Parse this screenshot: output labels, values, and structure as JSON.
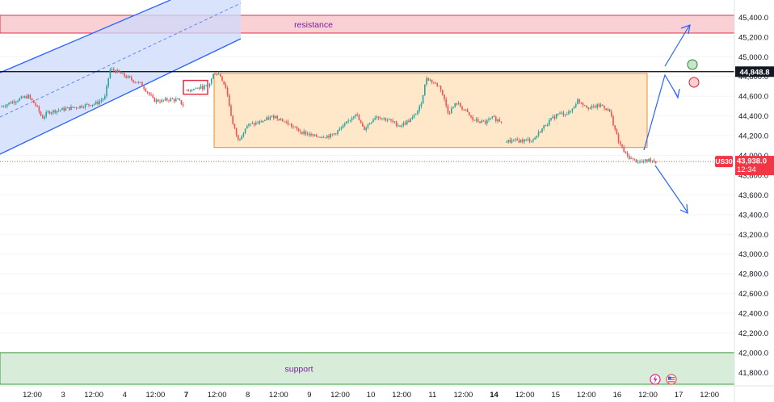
{
  "chart_data": {
    "type": "candlestick",
    "symbol": "US30",
    "ylim": [
      41650,
      45550
    ],
    "y_ticks": [
      41800,
      42000,
      42200,
      42400,
      42600,
      42800,
      43000,
      43200,
      43400,
      43600,
      43800,
      44000,
      44200,
      44400,
      44600,
      44800,
      45000,
      45200,
      45400
    ],
    "y_tick_labels": [
      "41,800.0",
      "42,000.0",
      "42,200.0",
      "42,400.0",
      "42,600.0",
      "42,800.0",
      "43,000.0",
      "43,200.0",
      "43,400.0",
      "43,600.0",
      "43,800.0",
      "44,000.0",
      "44,200.0",
      "44,400.0",
      "44,600.0",
      "44,800.0",
      "45,000.0",
      "45,200.0",
      "45,400.0"
    ],
    "x_ticks": [
      {
        "label": "12:00",
        "bold": false
      },
      {
        "label": "3",
        "bold": false
      },
      {
        "label": "12:00",
        "bold": false
      },
      {
        "label": "4",
        "bold": false
      },
      {
        "label": "12:00",
        "bold": false
      },
      {
        "label": "7",
        "bold": true
      },
      {
        "label": "12:00",
        "bold": false
      },
      {
        "label": "8",
        "bold": false
      },
      {
        "label": "12:00",
        "bold": false
      },
      {
        "label": "9",
        "bold": false
      },
      {
        "label": "12:00",
        "bold": false
      },
      {
        "label": "10",
        "bold": false
      },
      {
        "label": "12:00",
        "bold": false
      },
      {
        "label": "11",
        "bold": false
      },
      {
        "label": "12:00",
        "bold": false
      },
      {
        "label": "14",
        "bold": true
      },
      {
        "label": "12:00",
        "bold": false
      },
      {
        "label": "15",
        "bold": false
      },
      {
        "label": "12:00",
        "bold": false
      },
      {
        "label": "16",
        "bold": false
      },
      {
        "label": "12:00",
        "bold": false
      },
      {
        "label": "17",
        "bold": false
      },
      {
        "label": "12:00",
        "bold": false
      }
    ],
    "price_path": [
      [
        0,
        44490
      ],
      [
        20,
        44560
      ],
      [
        35,
        44600
      ],
      [
        45,
        44500
      ],
      [
        52,
        44380
      ],
      [
        60,
        44440
      ],
      [
        80,
        44470
      ],
      [
        100,
        44500
      ],
      [
        120,
        44530
      ],
      [
        130,
        44590
      ],
      [
        136,
        44870
      ],
      [
        142,
        44860
      ],
      [
        160,
        44780
      ],
      [
        175,
        44720
      ],
      [
        182,
        44650
      ],
      [
        190,
        44560
      ],
      [
        200,
        44550
      ],
      [
        210,
        44570
      ],
      [
        220,
        44560
      ],
      [
        227,
        44510
      ],
      [
        229,
        44660
      ],
      [
        258,
        44700
      ],
      [
        265,
        44840
      ],
      [
        272,
        44820
      ],
      [
        280,
        44680
      ],
      [
        288,
        44320
      ],
      [
        295,
        44150
      ],
      [
        305,
        44300
      ],
      [
        320,
        44330
      ],
      [
        340,
        44400
      ],
      [
        355,
        44330
      ],
      [
        370,
        44250
      ],
      [
        390,
        44190
      ],
      [
        410,
        44200
      ],
      [
        425,
        44290
      ],
      [
        440,
        44430
      ],
      [
        450,
        44260
      ],
      [
        465,
        44400
      ],
      [
        480,
        44360
      ],
      [
        495,
        44300
      ],
      [
        510,
        44370
      ],
      [
        520,
        44490
      ],
      [
        528,
        44790
      ],
      [
        536,
        44740
      ],
      [
        545,
        44690
      ],
      [
        555,
        44430
      ],
      [
        565,
        44530
      ],
      [
        575,
        44460
      ],
      [
        585,
        44360
      ],
      [
        600,
        44330
      ],
      [
        610,
        44380
      ],
      [
        622,
        44340
      ],
      [
        625,
        44140
      ],
      [
        645,
        44150
      ],
      [
        660,
        44160
      ],
      [
        675,
        44310
      ],
      [
        690,
        44420
      ],
      [
        705,
        44430
      ],
      [
        715,
        44560
      ],
      [
        730,
        44480
      ],
      [
        745,
        44510
      ],
      [
        755,
        44440
      ],
      [
        765,
        44150
      ],
      [
        775,
        44000
      ],
      [
        785,
        43950
      ],
      [
        795,
        43930
      ],
      [
        805,
        43960
      ],
      [
        812,
        43938
      ]
    ],
    "gaps_after_x": [
      227,
      622
    ],
    "annotations": {
      "resistance": {
        "label": "resistance",
        "from": 45240,
        "to": 45420
      },
      "support": {
        "label": "support",
        "from": 41680,
        "to": 42000
      },
      "range_box": {
        "x_from": 265,
        "x_to": 801,
        "from": 44080,
        "to": 44830
      },
      "small_box": {
        "x_from": 227,
        "x_to": 257,
        "from": 44620,
        "to": 44760
      },
      "horizontal_line": 44848.8,
      "last_close_line": 43938
    },
    "price_labels": {
      "horizontal_line_label": "44,848.8",
      "symbol": "US30",
      "last_price": "43,938.0",
      "countdown": "12:34"
    },
    "colors": {
      "up": "#26a69a",
      "down": "#ef5350",
      "resistance_fill": "#f8c8cd",
      "resistance_border": "#e0324a",
      "support_fill": "#d4ead6",
      "support_border": "#3c9a3e",
      "range_fill": "#ffe0b8",
      "range_border": "#f08a24",
      "channel_fill": "#cdd9fb",
      "channel_line": "#2962ff",
      "label_text": "#7b1fa2",
      "price_tag": "#f23645",
      "line_black": "#000000",
      "arrow": "#2962ff",
      "green_circle": "#c8e6c9",
      "red_circle": "#ffcdd2"
    }
  }
}
